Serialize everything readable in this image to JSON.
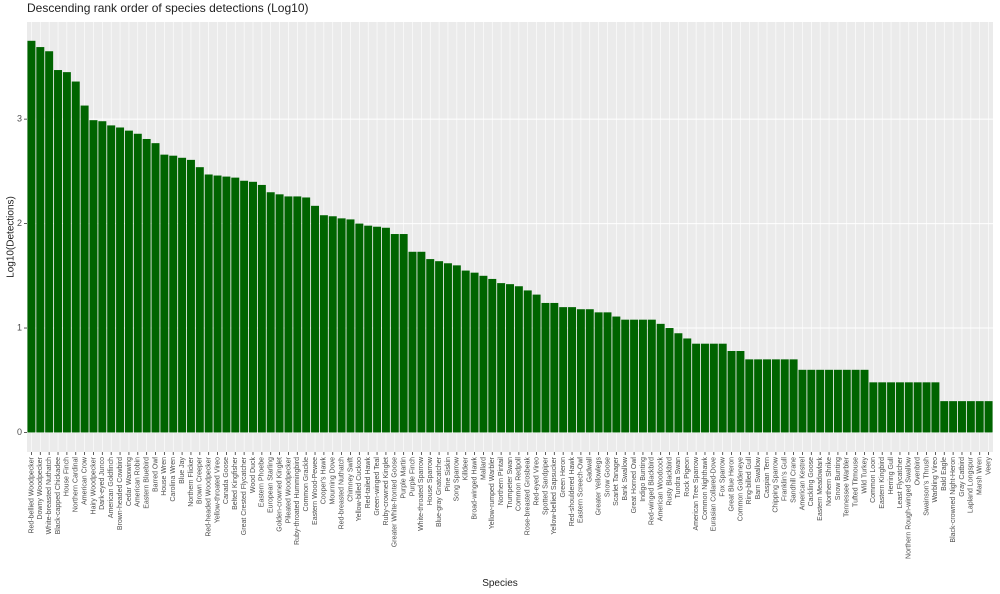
{
  "chart_data": {
    "type": "bar",
    "title": "Descending rank order of species detections (Log10)",
    "x_label": "Species",
    "y_label": "Log10(Detections)",
    "color": "#006400",
    "grid": true,
    "ylim": [
      -0.187,
      3.93
    ],
    "yticks": [
      0,
      1,
      2,
      3
    ],
    "categories": [
      "Red-bellied Woodpecker",
      "Downy Woodpecker",
      "White-breasted Nuthatch",
      "Black-capped Chickadee",
      "House Finch",
      "Northern Cardinal",
      "American Crow",
      "Hairy Woodpecker",
      "Dark-eyed Junco",
      "American Goldfinch",
      "Brown-headed Cowbird",
      "Cedar Waxwing",
      "American Robin",
      "Eastern Bluebird",
      "Barred Owl",
      "House Wren",
      "Carolina Wren",
      "Blue Jay",
      "Northern Flicker",
      "Brown Creeper",
      "Red-headed Woodpecker",
      "Yellow-throated Vireo",
      "Canada Goose",
      "Belted Kingfisher",
      "Great Crested Flycatcher",
      "Wood Duck",
      "Eastern Phoebe",
      "European Starling",
      "Golden-crowned Kinglet",
      "Pileated Woodpecker",
      "Ruby-throated Hummingbird",
      "Common Grackle",
      "Eastern Wood-Pewee",
      "Cooper's Hawk",
      "Mourning Dove",
      "Red-breasted Nuthatch",
      "Chimney Swift",
      "Yellow-billed Cuckoo",
      "Red-tailed Hawk",
      "Green-winged Teal",
      "Ruby-crowned Kinglet",
      "Greater White-fronted Goose",
      "Purple Martin",
      "Purple Finch",
      "White-throated Sparrow",
      "House Sparrow",
      "Blue-gray Gnatcatcher",
      "Pine Siskin",
      "Song Sparrow",
      "Killdeer",
      "Broad-winged Hawk",
      "Mallard",
      "Yellow-rumped Warbler",
      "Northern Pintail",
      "Trumpeter Swan",
      "Common Redpoll",
      "Rose-breasted Grosbeak",
      "Red-eyed Vireo",
      "Spotted Sandpiper",
      "Yellow-bellied Sapsucker",
      "Green Heron",
      "Red-shouldered Hawk",
      "Eastern Screech-Owl",
      "Gadwall",
      "Greater Yellowlegs",
      "Snow Goose",
      "Scarlet Tanager",
      "Bank Swallow",
      "Great Horned Owl",
      "Indigo Bunting",
      "Red-winged Blackbird",
      "American Woodcock",
      "Rusty Blackbird",
      "Tundra Swan",
      "Rock Pigeon",
      "American Tree Sparrow",
      "Common Nighthawk",
      "Eurasian Collared-Dove",
      "Fox Sparrow",
      "Great Blue Heron",
      "Common Goldeneye",
      "Ring-billed Gull",
      "Barn Swallow",
      "Caspian Tern",
      "Chipping Sparrow",
      "Franklin's Gull",
      "Sandhill Crane",
      "American Kestrel",
      "Cackling Goose",
      "Eastern Meadowlark",
      "Northern Shrike",
      "Snow Bunting",
      "Tennessee Warbler",
      "Tufted Titmouse",
      "Wild Turkey",
      "Common Loon",
      "Eastern Kingbird",
      "Herring Gull",
      "Least Flycatcher",
      "Northern Rough-winged Swallow",
      "Ovenbird",
      "Swainson's Thrush",
      "Warbling Vireo",
      "Bald Eagle",
      "Black-crowned Night-Heron",
      "Gray Catbird",
      "Lapland Longspur",
      "Marsh Wren",
      "Veery"
    ],
    "values": [
      3.75,
      3.69,
      3.65,
      3.47,
      3.45,
      3.36,
      3.13,
      2.99,
      2.98,
      2.94,
      2.92,
      2.89,
      2.86,
      2.81,
      2.77,
      2.66,
      2.65,
      2.63,
      2.61,
      2.54,
      2.47,
      2.46,
      2.45,
      2.44,
      2.41,
      2.4,
      2.37,
      2.3,
      2.28,
      2.26,
      2.26,
      2.25,
      2.17,
      2.08,
      2.07,
      2.05,
      2.04,
      2.0,
      1.98,
      1.97,
      1.96,
      1.9,
      1.9,
      1.73,
      1.73,
      1.66,
      1.64,
      1.62,
      1.6,
      1.55,
      1.53,
      1.5,
      1.47,
      1.43,
      1.42,
      1.4,
      1.36,
      1.32,
      1.24,
      1.24,
      1.2,
      1.2,
      1.18,
      1.18,
      1.15,
      1.15,
      1.11,
      1.08,
      1.08,
      1.08,
      1.08,
      1.04,
      1.0,
      0.95,
      0.9,
      0.85,
      0.85,
      0.85,
      0.85,
      0.78,
      0.78,
      0.7,
      0.7,
      0.7,
      0.7,
      0.7,
      0.7,
      0.6,
      0.6,
      0.6,
      0.6,
      0.6,
      0.6,
      0.6,
      0.6,
      0.48,
      0.48,
      0.48,
      0.48,
      0.48,
      0.48,
      0.48,
      0.48,
      0.3,
      0.3,
      0.3,
      0.3,
      0.3,
      0.3
    ]
  }
}
